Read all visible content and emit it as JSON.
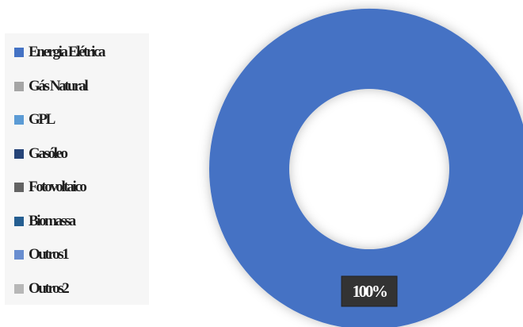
{
  "chart_data": {
    "type": "pie",
    "subtype": "donut",
    "legend_position": "left",
    "categories": [
      "Energia Elétrica",
      "Gás Natural",
      "GPL",
      "Gasóleo",
      "Fotovoltaico",
      "Biomassa",
      "Outros1",
      "Outros2"
    ],
    "values": [
      100,
      0,
      0,
      0,
      0,
      0,
      0,
      0
    ],
    "colors": [
      "#4472c4",
      "#a5a5a5",
      "#5b9bd5",
      "#264478",
      "#636363",
      "#255e91",
      "#698ed0",
      "#b7b7b7"
    ],
    "data_labels": [
      "100%"
    ]
  }
}
